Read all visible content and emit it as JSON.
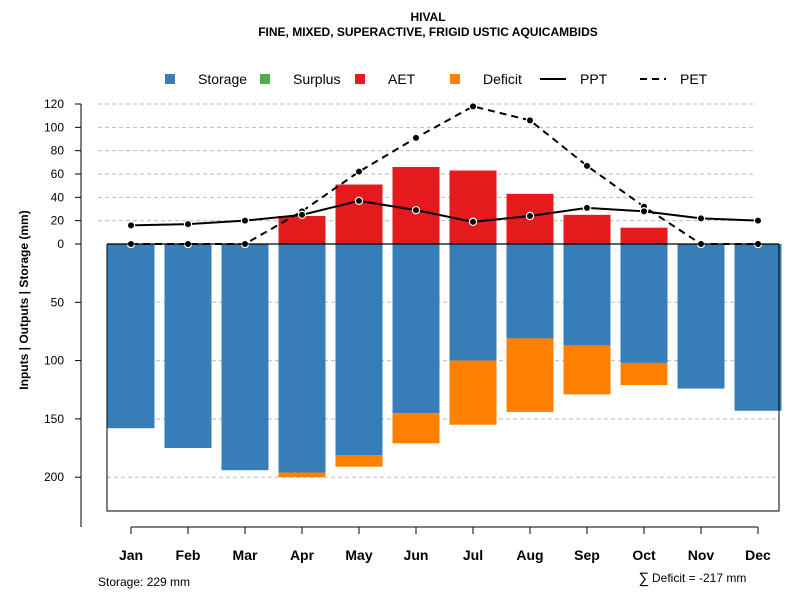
{
  "chart_data": {
    "type": "bar",
    "title": "HIVAL",
    "subtitle": "FINE, MIXED, SUPERACTIVE, FRIGID USTIC AQUICAMBIDS",
    "ylabel": "Inputs | Outputs | Storage    (mm)",
    "categories": [
      "Jan",
      "Feb",
      "Mar",
      "Apr",
      "May",
      "Jun",
      "Jul",
      "Aug",
      "Sep",
      "Oct",
      "Nov",
      "Dec"
    ],
    "upper_ticks": [
      "0",
      "20",
      "40",
      "60",
      "80",
      "100",
      "120"
    ],
    "upper_tick_values": [
      0,
      20,
      40,
      60,
      80,
      100,
      120
    ],
    "lower_ticks": [
      "50",
      "100",
      "150",
      "200"
    ],
    "lower_tick_values": [
      50,
      100,
      150,
      200
    ],
    "ylim_upper": [
      0,
      120
    ],
    "ylim_lower": [
      0,
      229
    ],
    "legend": [
      {
        "label": "Storage",
        "kind": "box",
        "color": "#377EB8"
      },
      {
        "label": "Surplus",
        "kind": "box",
        "color": "#4DAF4A"
      },
      {
        "label": "AET",
        "kind": "box",
        "color": "#E41A1C"
      },
      {
        "label": "Deficit",
        "kind": "box",
        "color": "#FF7F00"
      },
      {
        "label": "PPT",
        "kind": "solid",
        "color": "#000000"
      },
      {
        "label": "PET",
        "kind": "dashed",
        "color": "#000000"
      }
    ],
    "series": [
      {
        "name": "AET",
        "values": [
          0,
          0,
          0,
          24,
          51,
          66,
          63,
          43,
          25,
          14,
          0,
          0
        ]
      },
      {
        "name": "Storage",
        "values": [
          158,
          175,
          194,
          196,
          181,
          145,
          100,
          81,
          87,
          102,
          124,
          143
        ]
      },
      {
        "name": "Deficit",
        "values": [
          0,
          0,
          0,
          4,
          10,
          26,
          55,
          63,
          42,
          19,
          0,
          0
        ]
      },
      {
        "name": "PPT",
        "values": [
          16,
          17,
          20,
          25,
          37,
          29,
          19,
          24,
          31,
          28,
          22,
          20
        ]
      },
      {
        "name": "PET",
        "values": [
          0,
          0,
          0,
          28,
          62,
          91,
          118,
          106,
          67,
          32,
          0,
          0
        ]
      }
    ]
  },
  "footer": {
    "storage": "Storage: 229 mm",
    "deficit_symbol": "∑",
    "deficit": "Deficit = -217 mm"
  }
}
